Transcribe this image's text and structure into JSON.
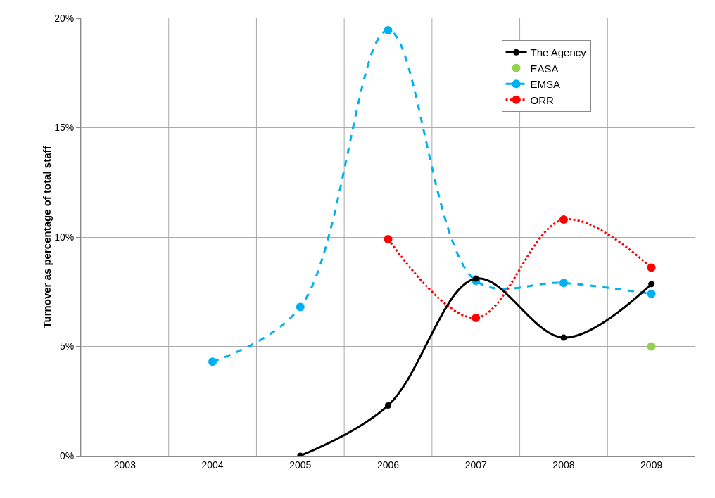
{
  "chart_data": {
    "type": "line",
    "ylabel": "Turnover as percentage of total staff",
    "categories": [
      "2003",
      "2004",
      "2005",
      "2006",
      "2007",
      "2008",
      "2009"
    ],
    "series": [
      {
        "name": "The Agency",
        "color": "#000000",
        "line_style": "solid",
        "values": [
          null,
          null,
          0,
          2.3,
          8.1,
          5.4,
          7.85
        ]
      },
      {
        "name": "EASA",
        "type": "scatter",
        "color": "#92d050",
        "values": [
          null,
          null,
          null,
          null,
          null,
          null,
          5.0
        ]
      },
      {
        "name": "EMSA",
        "color": "#00b0f0",
        "line_style": "dashed",
        "values": [
          null,
          4.3,
          6.8,
          19.45,
          8.0,
          7.9,
          7.4
        ]
      },
      {
        "name": "ORR",
        "color": "#ff0000",
        "line_style": "dotted",
        "values": [
          null,
          null,
          null,
          9.9,
          6.3,
          10.8,
          8.6
        ]
      }
    ],
    "ylim": [
      0,
      20
    ],
    "yticks": [
      {
        "value": 0,
        "label": "0%"
      },
      {
        "value": 5,
        "label": "5%"
      },
      {
        "value": 10,
        "label": "10%"
      },
      {
        "value": 15,
        "label": "15%"
      },
      {
        "value": 20,
        "label": "20%"
      }
    ],
    "grid": true,
    "legend": "top right",
    "marker": "circle"
  }
}
